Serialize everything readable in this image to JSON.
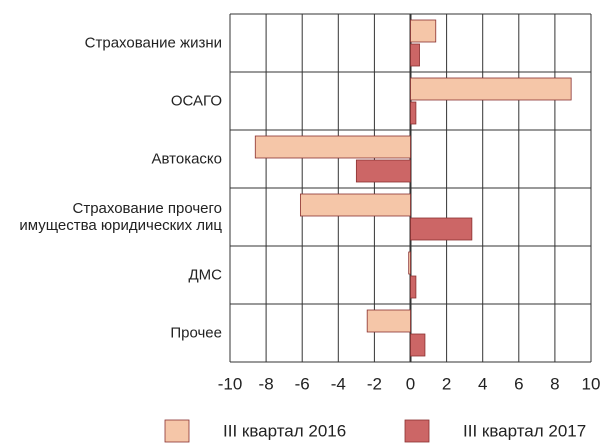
{
  "chart_data": {
    "type": "barh",
    "categories": [
      "Страхование жизни",
      "ОСАГО",
      "Автокаско",
      "Страхование прочего\nимущества юридических лиц",
      "ДМС",
      "Прочее"
    ],
    "series": [
      {
        "name": "III квартал 2016",
        "color": "#f5c6a8",
        "values": [
          1.4,
          8.9,
          -8.6,
          -6.1,
          -0.1,
          -2.4
        ]
      },
      {
        "name": "III квартал 2017",
        "color": "#cc6666",
        "values": [
          0.5,
          0.3,
          -3.0,
          3.4,
          0.3,
          0.8
        ]
      }
    ],
    "xlim": [
      -10,
      10
    ],
    "xticks": [
      -10,
      -8,
      -6,
      -4,
      -2,
      0,
      2,
      4,
      6,
      8,
      10
    ],
    "grid": true
  }
}
